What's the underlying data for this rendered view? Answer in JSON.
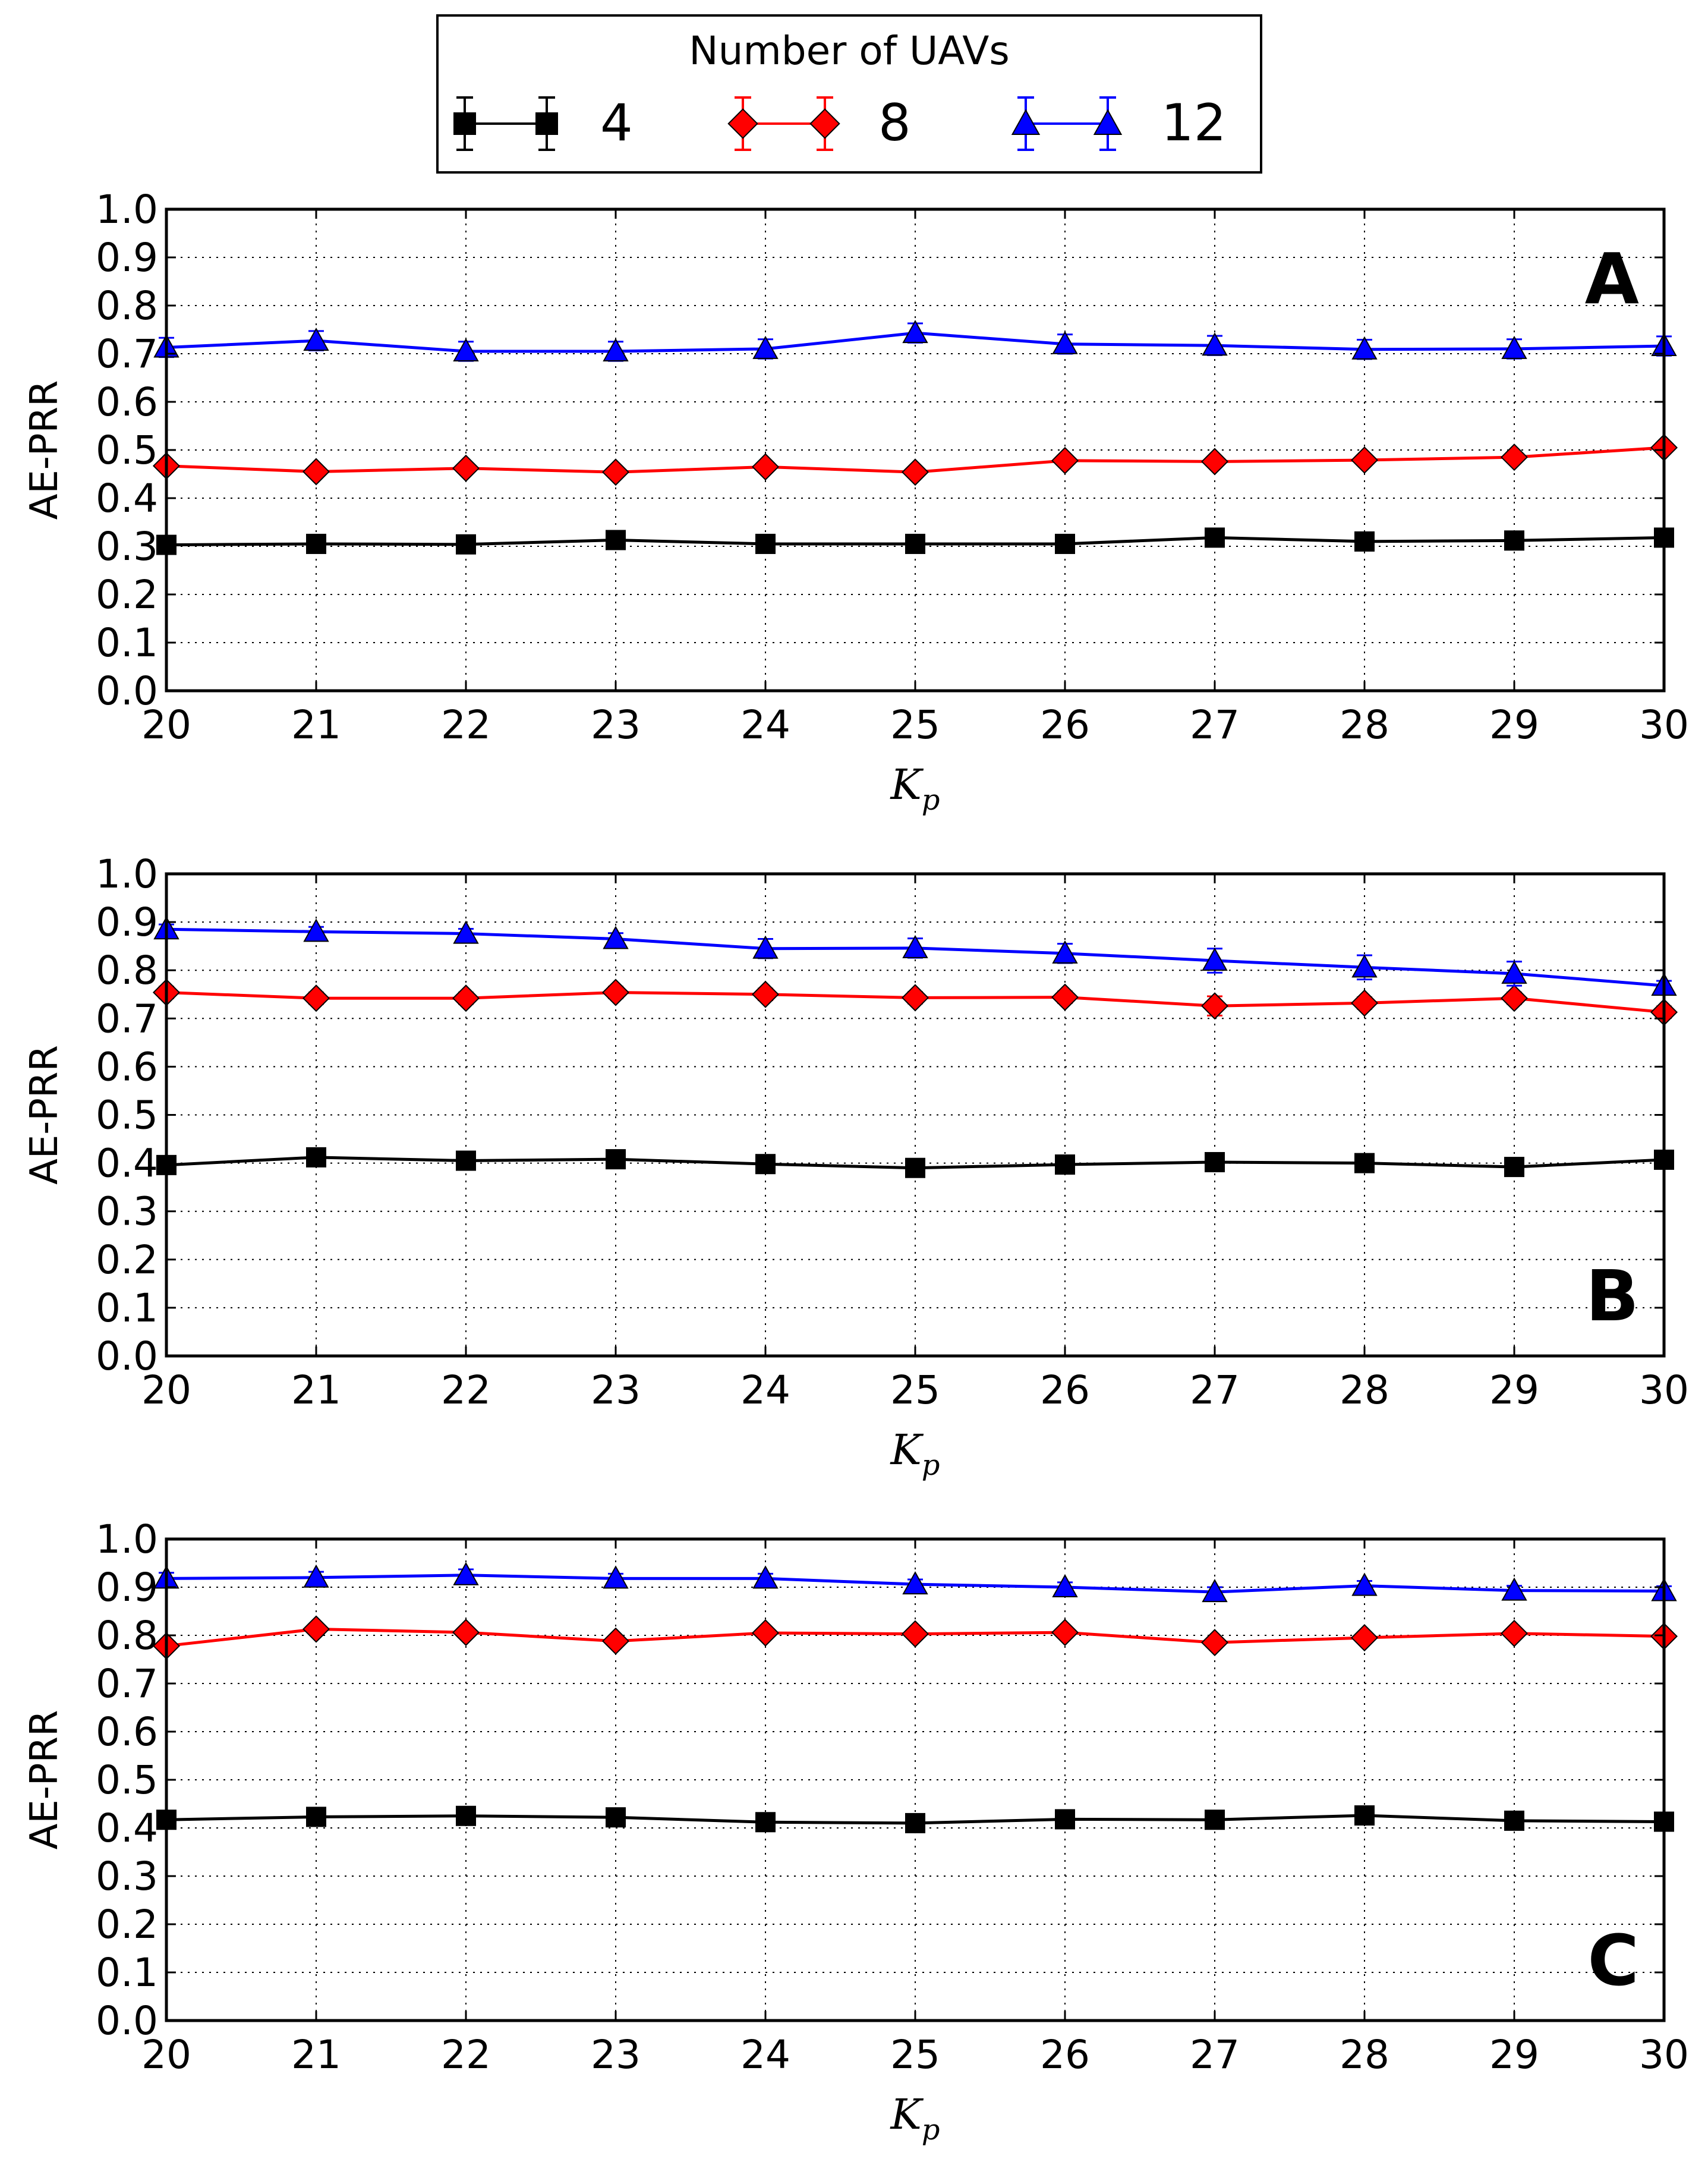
{
  "legend": {
    "title": "Number of UAVs",
    "entries": [
      {
        "label": "4",
        "color": "#000000",
        "marker": "square"
      },
      {
        "label": "8",
        "color": "#ff0000",
        "marker": "diamond"
      },
      {
        "label": "12",
        "color": "#0000ff",
        "marker": "triangle"
      }
    ]
  },
  "chart_data": [
    {
      "type": "line",
      "panel_label": "A",
      "label_position": "top-right",
      "xlabel": "K",
      "xlabel_sub": "p",
      "ylabel": "AE-PRR",
      "xlim": [
        20,
        30
      ],
      "ylim": [
        0.0,
        1.0
      ],
      "grid": true,
      "x": [
        20,
        21,
        22,
        23,
        24,
        25,
        26,
        27,
        28,
        29,
        30
      ],
      "x_tick_labels": [
        "20",
        "21",
        "22",
        "23",
        "24",
        "25",
        "26",
        "27",
        "28",
        "29",
        "30"
      ],
      "y_tick_labels": [
        "0.0",
        "0.1",
        "0.2",
        "0.3",
        "0.4",
        "0.5",
        "0.6",
        "0.7",
        "0.8",
        "0.9",
        "1.0"
      ],
      "series": [
        {
          "name": "4",
          "values": [
            0.303,
            0.305,
            0.304,
            0.313,
            0.305,
            0.305,
            0.305,
            0.318,
            0.31,
            0.312,
            0.318
          ],
          "errors": [
            0.006,
            0.006,
            0.006,
            0.006,
            0.006,
            0.006,
            0.006,
            0.006,
            0.006,
            0.006,
            0.006
          ]
        },
        {
          "name": "8",
          "values": [
            0.467,
            0.455,
            0.462,
            0.454,
            0.465,
            0.454,
            0.478,
            0.476,
            0.479,
            0.485,
            0.505
          ],
          "errors": [
            0.01,
            0.01,
            0.01,
            0.01,
            0.01,
            0.01,
            0.01,
            0.01,
            0.01,
            0.01,
            0.01
          ]
        },
        {
          "name": "12",
          "values": [
            0.713,
            0.727,
            0.705,
            0.705,
            0.71,
            0.743,
            0.72,
            0.717,
            0.709,
            0.71,
            0.716
          ],
          "errors": [
            0.02,
            0.02,
            0.02,
            0.02,
            0.02,
            0.02,
            0.02,
            0.02,
            0.02,
            0.02,
            0.02
          ]
        }
      ]
    },
    {
      "type": "line",
      "panel_label": "B",
      "label_position": "bottom-right",
      "xlabel": "K",
      "xlabel_sub": "p",
      "ylabel": "AE-PRR",
      "xlim": [
        20,
        30
      ],
      "ylim": [
        0.0,
        1.0
      ],
      "grid": true,
      "x": [
        20,
        21,
        22,
        23,
        24,
        25,
        26,
        27,
        28,
        29,
        30
      ],
      "x_tick_labels": [
        "20",
        "21",
        "22",
        "23",
        "24",
        "25",
        "26",
        "27",
        "28",
        "29",
        "30"
      ],
      "y_tick_labels": [
        "0.0",
        "0.1",
        "0.2",
        "0.3",
        "0.4",
        "0.5",
        "0.6",
        "0.7",
        "0.8",
        "0.9",
        "1.0"
      ],
      "series": [
        {
          "name": "4",
          "values": [
            0.396,
            0.412,
            0.405,
            0.408,
            0.398,
            0.39,
            0.397,
            0.402,
            0.4,
            0.392,
            0.407
          ],
          "errors": [
            0.006,
            0.006,
            0.006,
            0.006,
            0.006,
            0.006,
            0.006,
            0.006,
            0.006,
            0.006,
            0.006
          ]
        },
        {
          "name": "8",
          "values": [
            0.754,
            0.742,
            0.742,
            0.754,
            0.75,
            0.743,
            0.744,
            0.726,
            0.732,
            0.742,
            0.713
          ],
          "errors": [
            0.012,
            0.012,
            0.012,
            0.012,
            0.012,
            0.012,
            0.012,
            0.02,
            0.012,
            0.012,
            0.012
          ]
        },
        {
          "name": "12",
          "values": [
            0.885,
            0.88,
            0.876,
            0.865,
            0.845,
            0.846,
            0.835,
            0.82,
            0.806,
            0.793,
            0.768
          ],
          "errors": [
            0.01,
            0.01,
            0.01,
            0.012,
            0.02,
            0.02,
            0.02,
            0.025,
            0.025,
            0.025,
            0.01
          ]
        }
      ]
    },
    {
      "type": "line",
      "panel_label": "C",
      "label_position": "bottom-right",
      "xlabel": "K",
      "xlabel_sub": "p",
      "ylabel": "AE-PRR",
      "xlim": [
        20,
        30
      ],
      "ylim": [
        0.0,
        1.0
      ],
      "grid": true,
      "x": [
        20,
        21,
        22,
        23,
        24,
        25,
        26,
        27,
        28,
        29,
        30
      ],
      "x_tick_labels": [
        "20",
        "21",
        "22",
        "23",
        "24",
        "25",
        "26",
        "27",
        "28",
        "29",
        "30"
      ],
      "y_tick_labels": [
        "0.0",
        "0.1",
        "0.2",
        "0.3",
        "0.4",
        "0.5",
        "0.6",
        "0.7",
        "0.8",
        "0.9",
        "1.0"
      ],
      "series": [
        {
          "name": "4",
          "values": [
            0.417,
            0.423,
            0.425,
            0.422,
            0.412,
            0.41,
            0.418,
            0.417,
            0.426,
            0.415,
            0.413
          ],
          "errors": [
            0.006,
            0.006,
            0.006,
            0.006,
            0.006,
            0.006,
            0.006,
            0.006,
            0.006,
            0.006,
            0.006
          ]
        },
        {
          "name": "8",
          "values": [
            0.778,
            0.813,
            0.806,
            0.788,
            0.805,
            0.803,
            0.806,
            0.785,
            0.795,
            0.804,
            0.798
          ],
          "errors": [
            0.01,
            0.01,
            0.01,
            0.01,
            0.01,
            0.01,
            0.01,
            0.01,
            0.01,
            0.01,
            0.01
          ]
        },
        {
          "name": "12",
          "values": [
            0.918,
            0.92,
            0.925,
            0.918,
            0.918,
            0.906,
            0.9,
            0.89,
            0.903,
            0.893,
            0.892
          ],
          "errors": [
            0.012,
            0.012,
            0.012,
            0.01,
            0.01,
            0.01,
            0.01,
            0.01,
            0.01,
            0.01,
            0.01
          ]
        }
      ]
    }
  ]
}
